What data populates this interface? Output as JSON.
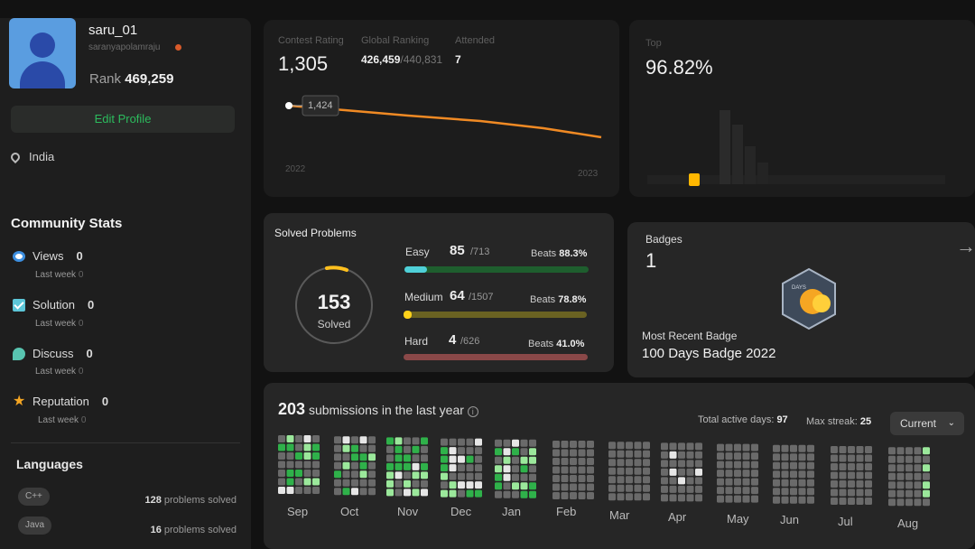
{
  "profile": {
    "username": "saru_01",
    "handle": "saranyapolamraju",
    "rank_label": "Rank",
    "rank_value": "469,259",
    "edit_label": "Edit Profile",
    "location": "India"
  },
  "community": {
    "title": "Community Stats",
    "items": [
      {
        "label": "Views",
        "value": "0",
        "sub_label": "Last week",
        "sub_value": "0",
        "icon": "eye-icon"
      },
      {
        "label": "Solution",
        "value": "0",
        "sub_label": "Last week",
        "sub_value": "0",
        "icon": "check-icon"
      },
      {
        "label": "Discuss",
        "value": "0",
        "sub_label": "Last week",
        "sub_value": "0",
        "icon": "chat-icon"
      },
      {
        "label": "Reputation",
        "value": "0",
        "sub_label": "Last week",
        "sub_value": "0",
        "icon": "star-icon"
      }
    ]
  },
  "languages": {
    "title": "Languages",
    "items": [
      {
        "name": "C++",
        "count": "128",
        "suffix": "problems solved"
      },
      {
        "name": "Java",
        "count": "16",
        "suffix": "problems solved"
      }
    ]
  },
  "contest": {
    "rating_label": "Contest Rating",
    "rating_value": "1,305",
    "global_label": "Global Ranking",
    "global_value": "426,459",
    "global_total": "/440,831",
    "attended_label": "Attended",
    "attended_value": "7",
    "tooltip": "1,424",
    "year_start": "2022",
    "year_end": "2023",
    "line_color": "#f08a24"
  },
  "top": {
    "label": "Top",
    "value": "96.82%"
  },
  "solved": {
    "title": "Solved Problems",
    "total": "153",
    "total_label": "Solved",
    "easy": {
      "label": "Easy",
      "count": "85",
      "total": "/713",
      "beats_label": "Beats",
      "beats": "88.3%",
      "color": "#1cbaba"
    },
    "medium": {
      "label": "Medium",
      "count": "64",
      "total": "/1507",
      "beats_label": "Beats",
      "beats": "78.8%",
      "color": "#ffb700"
    },
    "hard": {
      "label": "Hard",
      "count": "4",
      "total": "/626",
      "beats_label": "Beats",
      "beats": "41.0%",
      "color": "#ef4743"
    }
  },
  "badges": {
    "title": "Badges",
    "count": "1",
    "recent_label": "Most Recent Badge",
    "recent_name": "100 Days Badge 2022",
    "badge_text": "DAYS"
  },
  "submissions": {
    "count": "203",
    "label": "submissions in the last year",
    "active_label": "Total active days:",
    "active_value": "97",
    "streak_label": "Max streak:",
    "streak_value": "25",
    "select_value": "Current",
    "months": [
      "Sep",
      "Oct",
      "Nov",
      "Dec",
      "Jan",
      "Feb",
      "Mar",
      "Apr",
      "May",
      "Jun",
      "Jul",
      "Aug"
    ]
  }
}
